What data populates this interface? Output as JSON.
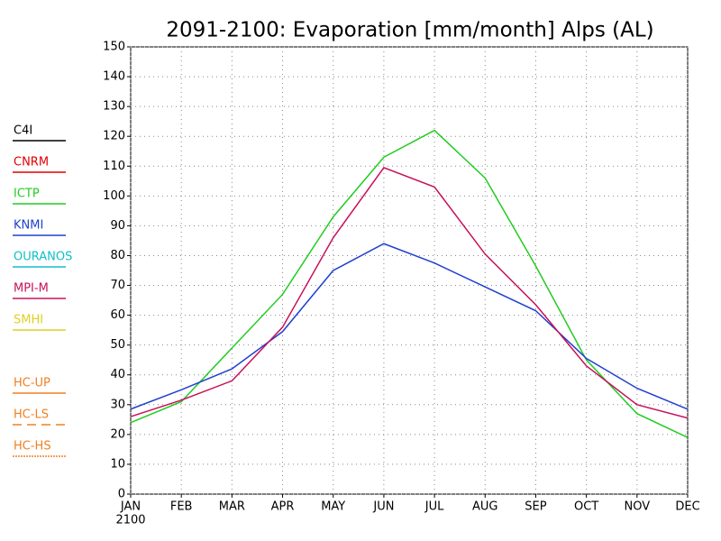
{
  "chart_data": {
    "type": "line",
    "title": "2091-2100: Evaporation [mm/month] Alps (AL)",
    "categories": [
      "JAN",
      "FEB",
      "MAR",
      "APR",
      "MAY",
      "JUN",
      "JUL",
      "AUG",
      "SEP",
      "OCT",
      "NOV",
      "DEC"
    ],
    "xlabel": "2100",
    "ylim": [
      0,
      150
    ],
    "yticks": [
      0,
      10,
      20,
      30,
      40,
      50,
      60,
      70,
      80,
      90,
      100,
      110,
      120,
      130,
      140,
      150
    ],
    "grid": true,
    "series": [
      {
        "name": "C4I",
        "color": "#000000",
        "values": [
          null,
          null,
          null,
          null,
          null,
          null,
          null,
          null,
          null,
          null,
          null,
          null
        ]
      },
      {
        "name": "CNRM",
        "color": "#e00000",
        "values": [
          null,
          null,
          null,
          null,
          null,
          null,
          null,
          null,
          null,
          null,
          null,
          null
        ]
      },
      {
        "name": "ICTP",
        "color": "#22cc22",
        "values": [
          24,
          31,
          49,
          67,
          93,
          113,
          122,
          106,
          76.5,
          45,
          27,
          19
        ]
      },
      {
        "name": "KNMI",
        "color": "#2040d0",
        "values": [
          28.5,
          35,
          42,
          54.5,
          75,
          84,
          77.5,
          69.5,
          61.5,
          45.5,
          35.5,
          28.5
        ]
      },
      {
        "name": "OURANOS",
        "color": "#10c0c8",
        "values": [
          null,
          null,
          null,
          null,
          null,
          null,
          null,
          null,
          null,
          null,
          null,
          null
        ]
      },
      {
        "name": "MPI-M",
        "color": "#c8105a",
        "values": [
          26,
          31.5,
          38,
          56,
          86,
          109.5,
          103,
          80.5,
          63.5,
          43,
          30,
          25.5
        ]
      },
      {
        "name": "SMHI",
        "color": "#e0d020",
        "values": [
          null,
          null,
          null,
          null,
          null,
          null,
          null,
          null,
          null,
          null,
          null,
          null
        ]
      },
      {
        "name": "HC-UP",
        "color": "#f08020",
        "values": [
          null,
          null,
          null,
          null,
          null,
          null,
          null,
          null,
          null,
          null,
          null,
          null
        ]
      },
      {
        "name": "HC-LS",
        "color": "#f08020",
        "dash": "dashed",
        "values": [
          null,
          null,
          null,
          null,
          null,
          null,
          null,
          null,
          null,
          null,
          null,
          null
        ]
      },
      {
        "name": "HC-HS",
        "color": "#f08020",
        "dash": "dotted",
        "values": [
          null,
          null,
          null,
          null,
          null,
          null,
          null,
          null,
          null,
          null,
          null,
          null
        ]
      }
    ]
  }
}
